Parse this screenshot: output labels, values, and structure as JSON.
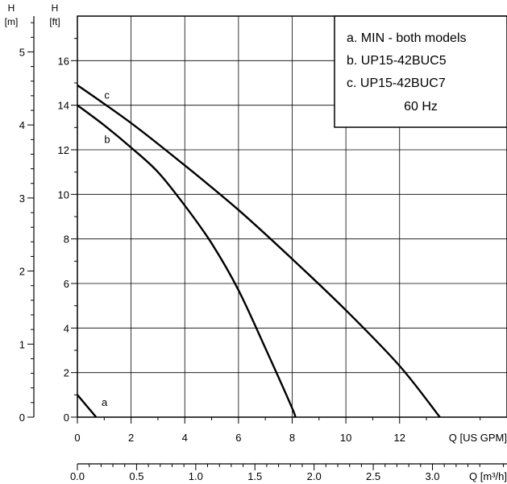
{
  "legend": {
    "items": [
      "a. MIN - both models",
      "b. UP15-42BUC5",
      "c. UP15-42BUC7"
    ],
    "frequency": "60 Hz"
  },
  "chart_data": {
    "type": "line",
    "left_axis_m": {
      "label_line1": "H",
      "label_line2": "[m]",
      "ticks": [
        "0",
        "1",
        "2",
        "3",
        "4",
        "5"
      ],
      "range": [
        0,
        5.49
      ]
    },
    "left_axis_ft": {
      "label_line1": "H",
      "label_line2": "[ft]",
      "ticks": [
        "0",
        "2",
        "4",
        "6",
        "8",
        "10",
        "12",
        "14",
        "16"
      ],
      "range": [
        0,
        18
      ]
    },
    "bottom_axis_gpm": {
      "label": "Q [US GPM]",
      "ticks": [
        "0",
        "2",
        "4",
        "6",
        "8",
        "10",
        "12"
      ],
      "range": [
        0,
        16
      ]
    },
    "bottom_axis_m3h": {
      "label": "Q [m³/h]",
      "ticks": [
        "0.0",
        "0.5",
        "1.0",
        "1.5",
        "2.0",
        "2.5",
        "3.0"
      ],
      "range": [
        0,
        3.63
      ]
    },
    "grid": true,
    "series": [
      {
        "label": "a",
        "x_gpm": [
          0,
          0.7
        ],
        "y_ft": [
          1.0,
          0
        ]
      },
      {
        "label": "b",
        "x_gpm": [
          0,
          1,
          2,
          3,
          4,
          5,
          6,
          7,
          8,
          8.1
        ],
        "y_ft": [
          14.0,
          13.1,
          12.1,
          11.0,
          9.5,
          7.8,
          5.7,
          3.1,
          0.4,
          0
        ]
      },
      {
        "label": "c",
        "x_gpm": [
          0,
          2,
          4,
          6,
          8,
          10,
          12,
          13.5
        ],
        "y_ft": [
          14.9,
          13.2,
          11.3,
          9.3,
          7.1,
          4.8,
          2.3,
          0
        ]
      }
    ]
  }
}
